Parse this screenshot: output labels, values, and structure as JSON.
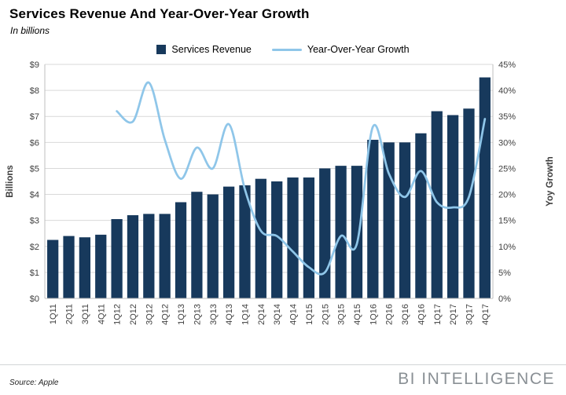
{
  "header": {
    "title": "Services Revenue And Year-Over-Year Growth",
    "subtitle": "In billions"
  },
  "legend": [
    {
      "label": "Services Revenue",
      "type": "bar"
    },
    {
      "label": "Year-Over-Year Growth",
      "type": "line"
    }
  ],
  "footer": {
    "source": "Source: Apple",
    "brand": "BI INTELLIGENCE"
  },
  "colors": {
    "bar": "#17395c",
    "line": "#8fc6e9",
    "grid": "#d9d9d9",
    "axis": "#bfbfbf",
    "text": "#3f3f3f",
    "brand": "#8a9095"
  },
  "chart_data": {
    "type": "bar",
    "subtype": "bar+line-combo",
    "title": "Services Revenue And Year-Over-Year Growth",
    "categories": [
      "1Q11",
      "2Q11",
      "3Q11",
      "4Q11",
      "1Q12",
      "2Q12",
      "3Q12",
      "4Q12",
      "1Q13",
      "2Q13",
      "3Q13",
      "4Q13",
      "1Q14",
      "2Q14",
      "3Q14",
      "4Q14",
      "1Q15",
      "2Q15",
      "3Q15",
      "4Q15",
      "1Q16",
      "2Q16",
      "3Q16",
      "4Q16",
      "1Q17",
      "2Q17",
      "3Q17",
      "4Q17"
    ],
    "series": [
      {
        "name": "Services Revenue",
        "type": "bar",
        "axis": "left",
        "unit": "$B",
        "values": [
          2.25,
          2.4,
          2.35,
          2.45,
          3.05,
          3.2,
          3.25,
          3.25,
          3.7,
          4.1,
          4.0,
          4.3,
          4.35,
          4.6,
          4.5,
          4.65,
          4.65,
          5.0,
          5.1,
          5.1,
          6.1,
          6.0,
          6.0,
          6.35,
          7.2,
          7.05,
          7.3,
          8.5
        ]
      },
      {
        "name": "Year-Over-Year Growth",
        "type": "line",
        "axis": "right",
        "unit": "%",
        "values": [
          null,
          null,
          null,
          null,
          36,
          34,
          41.5,
          30.5,
          23,
          29,
          25,
          33.5,
          21,
          13,
          12,
          9,
          6,
          5,
          12,
          10.5,
          33,
          24,
          19.5,
          24.5,
          18.5,
          17.5,
          19.5,
          34.5
        ]
      }
    ],
    "left_axis": {
      "label": "Billions",
      "min": 0,
      "max": 9,
      "ticks": [
        "$0",
        "$1",
        "$2",
        "$3",
        "$4",
        "$5",
        "$6",
        "$7",
        "$8",
        "$9"
      ]
    },
    "right_axis": {
      "label": "Yoy Growth",
      "min": 0,
      "max": 45,
      "ticks": [
        "0%",
        "5%",
        "10%",
        "15%",
        "20%",
        "25%",
        "30%",
        "35%",
        "40%",
        "45%"
      ]
    },
    "grid": true,
    "legend_position": "top"
  }
}
